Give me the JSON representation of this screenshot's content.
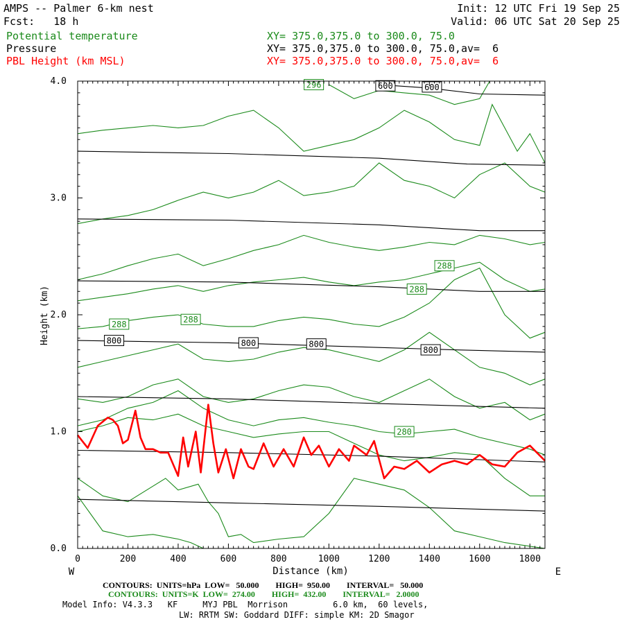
{
  "header": {
    "title": "AMPS -- Palmer 6-km nest",
    "fcst": "Fcst:   18 h",
    "init": "Init: 12 UTC Fri 19 Sep 25",
    "valid": "Valid: 06 UTC Sat 20 Sep 25"
  },
  "legend": [
    {
      "name": "Potential temperature",
      "xy": "XY= 375.0,375.0 to 300.0, 75.0",
      "color": "#1a8a1a"
    },
    {
      "name": "Pressure",
      "xy": "XY= 375.0,375.0 to 300.0, 75.0,av=  6",
      "color": "#000000"
    },
    {
      "name": "PBL Height (km MSL)",
      "xy": "XY= 375.0,375.0 to 300.0, 75.0,av=  6",
      "color": "#ff0000"
    }
  ],
  "footer": {
    "contours_pressure": "CONTOURS:  UNITS=hPa  LOW=   50.000        HIGH=  950.00        INTERVAL=   50.000",
    "contours_theta": "CONTOURS:  UNITS=K  LOW=  274.00        HIGH=  432.00        INTERVAL=   2.0000",
    "model_info": "Model Info: V4.3.3   KF     MYJ PBL  Morrison         6.0 km,  60 levels,",
    "physics": "LW: RRTM SW: Goddard DIFF: simple KM: 2D Smagor"
  },
  "chart_data": {
    "type": "line",
    "title": "AMPS -- Palmer 6-km nest",
    "xlabel": "Distance (km)",
    "ylabel": "Height (km)",
    "xlim": [
      0,
      1860
    ],
    "ylim": [
      0,
      4
    ],
    "xticks": [
      0,
      200,
      400,
      600,
      800,
      1000,
      1200,
      1400,
      1600,
      1800
    ],
    "yticks": [
      0.0,
      1.0,
      2.0,
      3.0,
      4.0
    ],
    "x_left_label": "W",
    "x_right_label": "E",
    "pressure_contours_hPa": [
      {
        "level": 950,
        "x": [
          0,
          600,
          1200,
          1860
        ],
        "y": [
          0.42,
          0.39,
          0.36,
          0.32
        ]
      },
      {
        "level": 900,
        "x": [
          0,
          600,
          1200,
          1860
        ],
        "y": [
          0.84,
          0.82,
          0.79,
          0.74
        ]
      },
      {
        "level": 850,
        "x": [
          0,
          600,
          1200,
          1860
        ],
        "y": [
          1.3,
          1.28,
          1.24,
          1.2
        ]
      },
      {
        "level": 800,
        "x": [
          0,
          600,
          1200,
          1500,
          1860
        ],
        "y": [
          1.78,
          1.76,
          1.72,
          1.7,
          1.68
        ]
      },
      {
        "level": 750,
        "x": [
          0,
          600,
          1200,
          1600,
          1860
        ],
        "y": [
          2.29,
          2.28,
          2.24,
          2.2,
          2.2
        ]
      },
      {
        "level": 700,
        "x": [
          0,
          600,
          1200,
          1600,
          1860
        ],
        "y": [
          2.82,
          2.81,
          2.77,
          2.72,
          2.72
        ]
      },
      {
        "level": 650,
        "x": [
          0,
          600,
          1200,
          1550,
          1860
        ],
        "y": [
          3.4,
          3.38,
          3.34,
          3.29,
          3.28
        ]
      },
      {
        "level": 600,
        "x": [
          1200,
          1400,
          1600,
          1860
        ],
        "y": [
          3.97,
          3.94,
          3.89,
          3.88
        ]
      }
    ],
    "pressure_labels": [
      {
        "text": "800",
        "x": 145,
        "y": 1.78
      },
      {
        "text": "800",
        "x": 680,
        "y": 1.76
      },
      {
        "text": "800",
        "x": 950,
        "y": 1.75
      },
      {
        "text": "800",
        "x": 1405,
        "y": 1.7
      },
      {
        "text": "600",
        "x": 1225,
        "y": 3.96
      },
      {
        "text": "600",
        "x": 1410,
        "y": 3.95
      }
    ],
    "theta_contours_K": [
      {
        "level": 274,
        "x": [
          0,
          100,
          200,
          300,
          400,
          450,
          500
        ],
        "y": [
          0.45,
          0.15,
          0.1,
          0.12,
          0.08,
          0.05,
          0.0
        ]
      },
      {
        "level": 276,
        "x": [
          0,
          100,
          200,
          350,
          400,
          480,
          520,
          560,
          600,
          650,
          700,
          800,
          900,
          1000,
          1100,
          1200,
          1300,
          1400,
          1500,
          1600,
          1700,
          1860
        ],
        "y": [
          0.6,
          0.45,
          0.4,
          0.6,
          0.5,
          0.55,
          0.4,
          0.3,
          0.1,
          0.12,
          0.05,
          0.08,
          0.1,
          0.3,
          0.6,
          0.55,
          0.5,
          0.35,
          0.15,
          0.1,
          0.05,
          0.0
        ]
      },
      {
        "level": 278,
        "x": [
          0,
          100,
          200,
          300,
          400,
          500,
          600,
          700,
          800,
          900,
          1000,
          1100,
          1200,
          1300,
          1400,
          1500,
          1600,
          1700,
          1800,
          1860
        ],
        "y": [
          1.0,
          1.05,
          1.12,
          1.1,
          1.15,
          1.05,
          1.0,
          0.95,
          0.98,
          1.0,
          1.0,
          0.9,
          0.8,
          0.75,
          0.78,
          0.82,
          0.8,
          0.6,
          0.45,
          0.45
        ]
      },
      {
        "level": 280,
        "x": [
          0,
          100,
          200,
          300,
          400,
          500,
          600,
          700,
          800,
          900,
          1000,
          1100,
          1200,
          1300,
          1400,
          1500,
          1600,
          1700,
          1800,
          1860
        ],
        "y": [
          1.05,
          1.1,
          1.2,
          1.25,
          1.35,
          1.2,
          1.1,
          1.05,
          1.1,
          1.12,
          1.08,
          1.05,
          1.0,
          0.98,
          1.0,
          1.02,
          0.95,
          0.9,
          0.85,
          0.8
        ]
      },
      {
        "level": 282,
        "x": [
          0,
          100,
          200,
          300,
          400,
          500,
          600,
          700,
          800,
          900,
          1000,
          1100,
          1200,
          1300,
          1400,
          1500,
          1600,
          1700,
          1800,
          1860
        ],
        "y": [
          1.28,
          1.25,
          1.3,
          1.4,
          1.45,
          1.3,
          1.25,
          1.28,
          1.35,
          1.4,
          1.38,
          1.3,
          1.25,
          1.35,
          1.45,
          1.3,
          1.2,
          1.25,
          1.1,
          1.15
        ]
      },
      {
        "level": 284,
        "x": [
          0,
          100,
          200,
          300,
          400,
          500,
          600,
          700,
          800,
          900,
          1000,
          1100,
          1200,
          1300,
          1400,
          1500,
          1600,
          1700,
          1800,
          1860
        ],
        "y": [
          1.55,
          1.6,
          1.65,
          1.7,
          1.75,
          1.62,
          1.6,
          1.62,
          1.68,
          1.72,
          1.7,
          1.65,
          1.6,
          1.7,
          1.85,
          1.7,
          1.55,
          1.5,
          1.4,
          1.45
        ]
      },
      {
        "level": 286,
        "x": [
          0,
          100,
          200,
          300,
          400,
          500,
          600,
          700,
          800,
          900,
          1000,
          1100,
          1200,
          1300,
          1400,
          1500,
          1600,
          1700,
          1800,
          1860
        ],
        "y": [
          1.88,
          1.9,
          1.95,
          1.98,
          2.0,
          1.92,
          1.9,
          1.9,
          1.95,
          1.98,
          1.96,
          1.92,
          1.9,
          1.98,
          2.1,
          2.3,
          2.4,
          2.0,
          1.8,
          1.85
        ]
      },
      {
        "level": 288,
        "x": [
          0,
          100,
          200,
          300,
          400,
          500,
          600,
          700,
          800,
          900,
          1000,
          1100,
          1200,
          1300,
          1400,
          1500,
          1600,
          1700,
          1800,
          1860
        ],
        "y": [
          2.12,
          2.15,
          2.18,
          2.22,
          2.25,
          2.2,
          2.25,
          2.28,
          2.3,
          2.32,
          2.28,
          2.25,
          2.28,
          2.3,
          2.35,
          2.4,
          2.45,
          2.3,
          2.2,
          2.22
        ]
      },
      {
        "level": 290,
        "x": [
          0,
          100,
          200,
          300,
          400,
          500,
          600,
          700,
          800,
          900,
          1000,
          1100,
          1200,
          1300,
          1400,
          1500,
          1600,
          1700,
          1800,
          1860
        ],
        "y": [
          2.3,
          2.35,
          2.42,
          2.48,
          2.52,
          2.42,
          2.48,
          2.55,
          2.6,
          2.68,
          2.62,
          2.58,
          2.55,
          2.58,
          2.62,
          2.6,
          2.68,
          2.65,
          2.6,
          2.62
        ]
      },
      {
        "level": 292,
        "x": [
          0,
          100,
          200,
          300,
          400,
          500,
          600,
          700,
          800,
          900,
          1000,
          1100,
          1200,
          1300,
          1400,
          1500,
          1600,
          1700,
          1800,
          1860
        ],
        "y": [
          2.78,
          2.82,
          2.85,
          2.9,
          2.98,
          3.05,
          3.0,
          3.05,
          3.15,
          3.02,
          3.05,
          3.1,
          3.3,
          3.15,
          3.1,
          3.0,
          3.2,
          3.3,
          3.1,
          3.05
        ]
      },
      {
        "level": 294,
        "x": [
          0,
          100,
          200,
          300,
          400,
          500,
          600,
          700,
          800,
          900,
          1000,
          1100,
          1200,
          1300,
          1400,
          1500,
          1600,
          1650,
          1700,
          1750,
          1800,
          1860
        ],
        "y": [
          3.55,
          3.58,
          3.6,
          3.62,
          3.6,
          3.62,
          3.7,
          3.75,
          3.6,
          3.4,
          3.45,
          3.5,
          3.6,
          3.75,
          3.65,
          3.5,
          3.45,
          3.8,
          3.6,
          3.4,
          3.55,
          3.3
        ]
      },
      {
        "level": 296,
        "x": [
          1000,
          1100,
          1200,
          1300,
          1400,
          1500,
          1600,
          1640
        ],
        "y": [
          3.97,
          3.85,
          3.92,
          3.9,
          3.88,
          3.8,
          3.85,
          4.0
        ]
      }
    ],
    "theta_labels": [
      {
        "text": "288",
        "x": 165,
        "y": 1.92
      },
      {
        "text": "288",
        "x": 450,
        "y": 1.96
      },
      {
        "text": "288",
        "x": 1350,
        "y": 2.22
      },
      {
        "text": "288",
        "x": 1460,
        "y": 2.42
      },
      {
        "text": "280",
        "x": 1300,
        "y": 1.0
      },
      {
        "text": "296",
        "x": 940,
        "y": 3.97
      }
    ],
    "series": [
      {
        "name": "PBL Height (km MSL)",
        "color": "#ff0000",
        "x": [
          0,
          40,
          80,
          120,
          140,
          160,
          180,
          200,
          230,
          250,
          270,
          300,
          330,
          360,
          400,
          420,
          440,
          470,
          490,
          520,
          540,
          560,
          590,
          620,
          650,
          680,
          700,
          740,
          780,
          820,
          860,
          900,
          930,
          960,
          1000,
          1040,
          1080,
          1100,
          1150,
          1180,
          1220,
          1260,
          1300,
          1350,
          1400,
          1450,
          1500,
          1550,
          1600,
          1650,
          1700,
          1750,
          1800,
          1860
        ],
        "y": [
          0.97,
          0.86,
          1.05,
          1.12,
          1.1,
          1.05,
          0.9,
          0.93,
          1.18,
          0.95,
          0.85,
          0.85,
          0.82,
          0.82,
          0.62,
          0.95,
          0.7,
          1.0,
          0.65,
          1.23,
          0.9,
          0.65,
          0.85,
          0.6,
          0.85,
          0.7,
          0.68,
          0.9,
          0.7,
          0.85,
          0.7,
          0.95,
          0.8,
          0.88,
          0.7,
          0.85,
          0.75,
          0.88,
          0.8,
          0.92,
          0.6,
          0.7,
          0.68,
          0.75,
          0.65,
          0.72,
          0.75,
          0.72,
          0.8,
          0.72,
          0.7,
          0.82,
          0.88,
          0.75
        ]
      }
    ]
  }
}
